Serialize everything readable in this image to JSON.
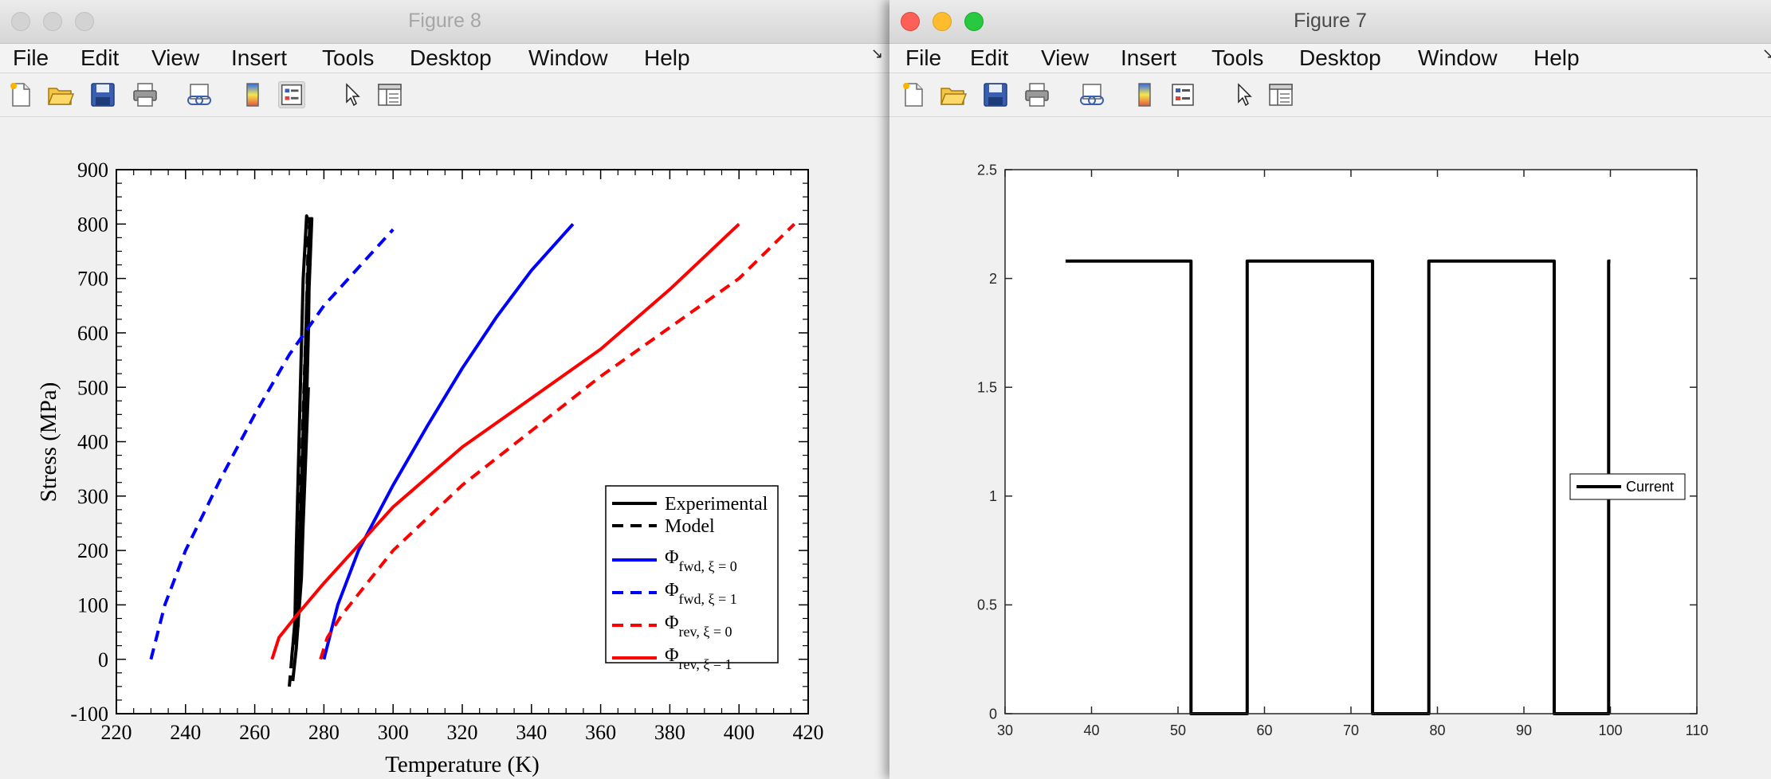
{
  "windows": {
    "left": {
      "title": "Figure 8",
      "menu": [
        "File",
        "Edit",
        "View",
        "Insert",
        "Tools",
        "Desktop",
        "Window",
        "Help"
      ],
      "toolbar_icons": [
        "new-figure-icon",
        "open-file-icon",
        "save-icon",
        "print-icon",
        "link-icon",
        "colorbar-icon",
        "legend-icon",
        "pointer-icon",
        "property-inspector-icon"
      ]
    },
    "right": {
      "title": "Figure 7",
      "menu": [
        "File",
        "Edit",
        "View",
        "Insert",
        "Tools",
        "Desktop",
        "Window",
        "Help"
      ],
      "toolbar_icons": [
        "new-figure-icon",
        "open-file-icon",
        "save-icon",
        "print-icon",
        "link-icon",
        "colorbar-icon",
        "legend-icon",
        "pointer-icon",
        "property-inspector-icon"
      ]
    }
  },
  "chart_data": [
    {
      "type": "line",
      "xlabel": "Temperature (K)",
      "ylabel": "Stress (MPa)",
      "xlim": [
        220,
        420
      ],
      "ylim": [
        -100,
        900
      ],
      "xticks": [
        220,
        240,
        260,
        280,
        300,
        320,
        340,
        360,
        380,
        400,
        420
      ],
      "yticks": [
        -100,
        0,
        100,
        200,
        300,
        400,
        500,
        600,
        700,
        800,
        900
      ],
      "grid": false,
      "legend_position": "bottom-right",
      "series": [
        {
          "name": "Experimental",
          "color": "#000000",
          "style": "solid",
          "x": [
            271,
            272,
            273.5,
            274.5,
            275.5,
            276,
            275,
            274,
            273,
            272,
            271.5,
            272.5,
            273.5,
            275,
            276,
            276.5,
            275.5,
            274.5,
            273.5,
            272.5,
            274,
            275.5
          ],
          "y": [
            -40,
            20,
            150,
            350,
            600,
            800,
            815,
            700,
            450,
            200,
            30,
            120,
            300,
            550,
            760,
            810,
            650,
            400,
            180,
            60,
            250,
            500
          ]
        },
        {
          "name": "Model",
          "color": "#000000",
          "style": "dashed",
          "x": [
            270,
            271.5,
            273,
            274,
            275,
            275.5,
            276,
            275,
            274,
            273,
            271.5,
            270.5
          ],
          "y": [
            -50,
            60,
            250,
            450,
            650,
            780,
            810,
            650,
            420,
            220,
            60,
            -10
          ]
        },
        {
          "name": "Φfwd, ξ = 0",
          "label_main": "Φ",
          "label_sub": "fwd, ξ = 0",
          "color": "#0000ff",
          "style": "solid",
          "x": [
            280,
            284,
            290,
            300,
            310,
            320,
            330,
            340,
            352
          ],
          "y": [
            0,
            100,
            200,
            320,
            430,
            535,
            630,
            715,
            800
          ]
        },
        {
          "name": "Φfwd, ξ = 1",
          "label_main": "Φ",
          "label_sub": "fwd, ξ = 1",
          "color": "#0000ff",
          "style": "dashed",
          "x": [
            230,
            234,
            240,
            250,
            260,
            270,
            280,
            290,
            300
          ],
          "y": [
            0,
            100,
            200,
            330,
            450,
            560,
            650,
            720,
            790
          ]
        },
        {
          "name": "Φrev, ξ = 0",
          "label_main": "Φ",
          "label_sub": "rev, ξ = 0",
          "color": "#ff0000",
          "style": "dashed",
          "x": [
            279,
            281,
            285,
            300,
            320,
            340,
            360,
            380,
            400,
            416
          ],
          "y": [
            0,
            40,
            80,
            200,
            320,
            420,
            520,
            610,
            700,
            800
          ]
        },
        {
          "name": "Φrev, ξ = 1",
          "label_main": "Φ",
          "label_sub": "rev, ξ = 1",
          "color": "#ff0000",
          "style": "solid",
          "x": [
            265,
            267,
            272,
            280,
            290,
            300,
            320,
            340,
            360,
            380,
            400
          ],
          "y": [
            0,
            40,
            80,
            140,
            210,
            280,
            390,
            480,
            570,
            680,
            800
          ]
        }
      ]
    },
    {
      "type": "line",
      "xlim": [
        30,
        110
      ],
      "ylim": [
        0,
        2.5
      ],
      "xticks": [
        30,
        40,
        50,
        60,
        70,
        80,
        90,
        100,
        110
      ],
      "yticks": [
        0,
        0.5,
        1,
        1.5,
        2,
        2.5
      ],
      "grid": false,
      "legend_position": "right",
      "series": [
        {
          "name": "Current",
          "color": "#000000",
          "style": "solid",
          "x": [
            37,
            51.5,
            51.5,
            58,
            58,
            72.5,
            72.5,
            79,
            79,
            93.5,
            93.5,
            99.8,
            99.8,
            100
          ],
          "y": [
            2.08,
            2.08,
            0,
            0,
            2.08,
            2.08,
            0,
            0,
            2.08,
            2.08,
            0,
            0,
            2.08,
            2.08
          ]
        }
      ]
    }
  ]
}
